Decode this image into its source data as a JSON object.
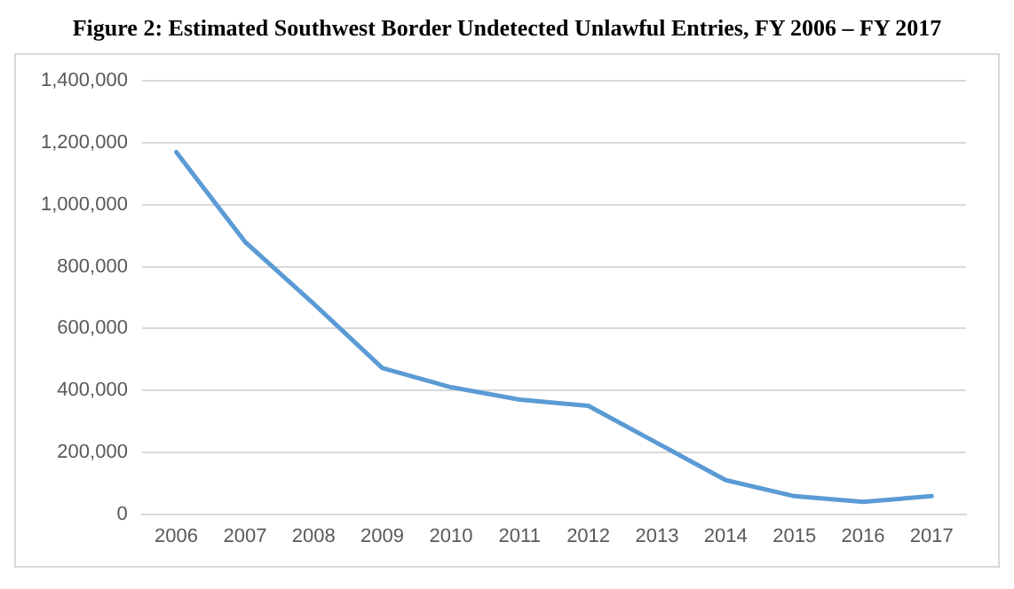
{
  "chart_data": {
    "type": "line",
    "title": "Figure 2:  Estimated Southwest Border Undetected Unlawful Entries, FY 2006 – FY 2017",
    "categories": [
      "2006",
      "2007",
      "2008",
      "2009",
      "2010",
      "2011",
      "2012",
      "2013",
      "2014",
      "2015",
      "2016",
      "2017"
    ],
    "series": [
      {
        "color": "#5b9bd5",
        "values": [
          1170000,
          880000,
          680000,
          472000,
          410000,
          370000,
          350000,
          230000,
          110000,
          58000,
          40000,
          58000
        ]
      }
    ],
    "ylim": [
      0,
      1400000
    ],
    "yticks": [
      {
        "value": 0,
        "label": "0"
      },
      {
        "value": 200000,
        "label": "200,000"
      },
      {
        "value": 400000,
        "label": "400,000"
      },
      {
        "value": 600000,
        "label": "600,000"
      },
      {
        "value": 800000,
        "label": "800,000"
      },
      {
        "value": 1000000,
        "label": "1,000,000"
      },
      {
        "value": 1200000,
        "label": "1,200,000"
      },
      {
        "value": 1400000,
        "label": "1,400,000"
      }
    ],
    "grid": "y",
    "legend": false,
    "marker": "none",
    "line_style": "solid"
  }
}
